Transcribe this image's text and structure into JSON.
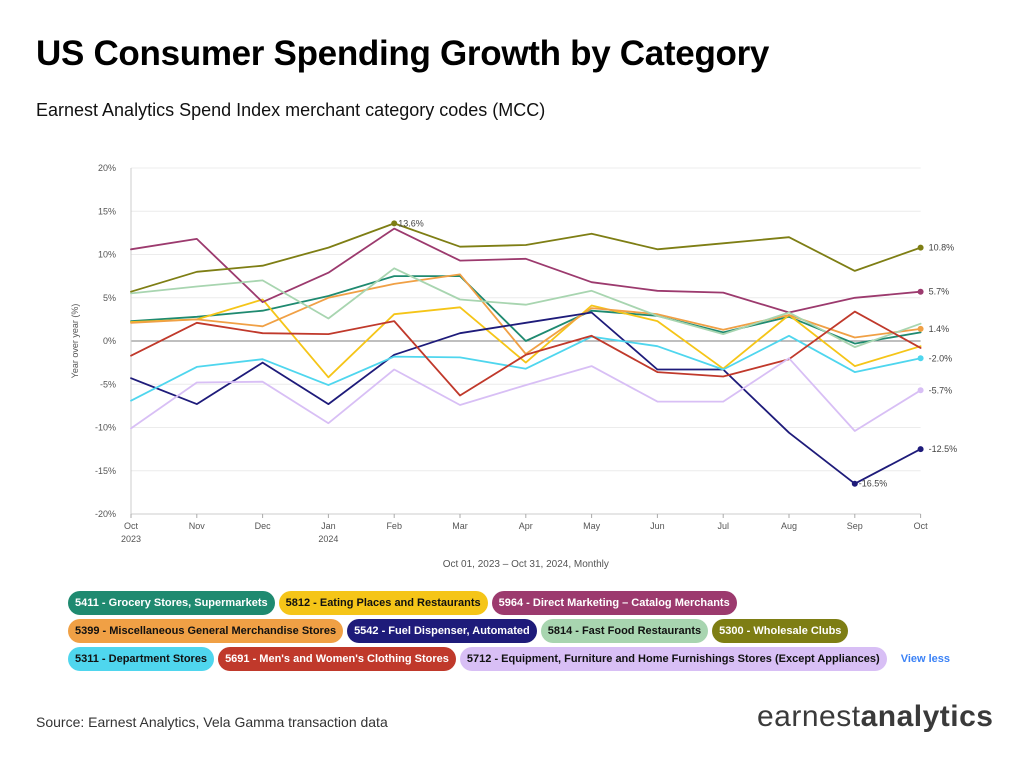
{
  "title": "US Consumer Spending Growth by Category",
  "subtitle": "Earnest Analytics Spend Index merchant category codes (MCC)",
  "date_range": "Oct 01, 2023 – Oct 31, 2024, Monthly",
  "view_less": "View less",
  "source": "Source: Earnest Analytics, Vela Gamma transaction data",
  "logo": {
    "part1": "earnest",
    "part2": "analytics"
  },
  "chart_data": {
    "type": "line",
    "ylabel": "Year over year (%)",
    "xlabel": "",
    "ylim": [
      -20,
      20
    ],
    "yticks": [
      20,
      15,
      10,
      5,
      0,
      -5,
      -10,
      -15,
      -20
    ],
    "ytick_labels": [
      "20%",
      "15%",
      "10%",
      "5%",
      "0%",
      "-5%",
      "-10%",
      "-15%",
      "-20%"
    ],
    "categories": [
      "Oct",
      "Nov",
      "Dec",
      "Jan",
      "Feb",
      "Mar",
      "Apr",
      "May",
      "Jun",
      "Jul",
      "Aug",
      "Sep",
      "Oct"
    ],
    "year_labels": [
      "2023",
      "",
      "",
      "2024",
      "",
      "",
      "",
      "",
      "",
      "",
      "",
      "",
      ""
    ],
    "series": [
      {
        "name": "5411 - Grocery Stores, Supermarkets",
        "color": "#1f8a70",
        "text_color": "#ffffff",
        "values": [
          2.3,
          2.8,
          3.5,
          5.2,
          7.5,
          7.5,
          0,
          3.5,
          2.9,
          1.0,
          2.8,
          -0.3,
          1.0
        ]
      },
      {
        "name": "5812 - Eating Places and Restaurants",
        "color": "#f5c518",
        "text_color": "#111111",
        "values": [
          2.2,
          2.5,
          4.8,
          -4.2,
          3.1,
          3.9,
          -2.5,
          4.1,
          2.3,
          -3.2,
          3.0,
          -2.9,
          -0.6
        ]
      },
      {
        "name": "5964 - Direct Marketing – Catalog Merchants",
        "color": "#9c3a6e",
        "text_color": "#ffffff",
        "values": [
          10.6,
          11.8,
          4.5,
          7.9,
          13.0,
          9.3,
          9.5,
          6.8,
          5.8,
          5.6,
          3.3,
          5.0,
          5.7
        ]
      },
      {
        "name": "5399 - Miscellaneous General Merchandise Stores",
        "color": "#f0a045",
        "text_color": "#111111",
        "values": [
          2.1,
          2.5,
          1.7,
          5.0,
          6.6,
          7.7,
          -1.5,
          3.8,
          3.1,
          1.3,
          3.0,
          0.4,
          1.4
        ]
      },
      {
        "name": "5542 - Fuel Dispenser, Automated",
        "color": "#1e1b7a",
        "text_color": "#ffffff",
        "values": [
          -4.3,
          -7.3,
          -2.5,
          -7.3,
          -1.6,
          0.9,
          2.1,
          3.3,
          -3.3,
          -3.3,
          -10.6,
          -16.5,
          -12.5
        ]
      },
      {
        "name": "5814 - Fast Food Restaurants",
        "color": "#a8d5b0",
        "text_color": "#111111",
        "values": [
          5.5,
          6.3,
          7.0,
          2.6,
          8.4,
          4.8,
          4.2,
          5.8,
          2.9,
          0.8,
          3.3,
          -0.7,
          2.0
        ]
      },
      {
        "name": "5300 - Wholesale Clubs",
        "color": "#7e7e14",
        "text_color": "#ffffff",
        "values": [
          5.7,
          8.0,
          8.7,
          10.8,
          13.6,
          10.9,
          11.1,
          12.4,
          10.6,
          11.3,
          12.0,
          8.1,
          10.8
        ]
      },
      {
        "name": "5311 - Department Stores",
        "color": "#4fd6ee",
        "text_color": "#111111",
        "values": [
          -6.9,
          -3.0,
          -2.1,
          -5.1,
          -1.8,
          -1.9,
          -3.2,
          0.5,
          -0.6,
          -3.3,
          0.6,
          -3.6,
          -2.0
        ]
      },
      {
        "name": "5691 - Men's and Women's Clothing Stores",
        "color": "#c0392b",
        "text_color": "#ffffff",
        "values": [
          -1.7,
          2.1,
          0.9,
          0.8,
          2.3,
          -6.3,
          -1.6,
          0.6,
          -3.6,
          -4.1,
          -2.1,
          3.4,
          -0.8
        ]
      },
      {
        "name": "5712 - Equipment, Furniture and Home Furnishings Stores (Except Appliances)",
        "color": "#d8bff5",
        "text_color": "#111111",
        "values": [
          -10.1,
          -4.8,
          -4.7,
          -9.5,
          -3.3,
          -7.4,
          -5.1,
          -2.9,
          -7.0,
          -7.0,
          -2.0,
          -10.4,
          -5.7
        ]
      }
    ],
    "legend_rows": [
      [
        0,
        1,
        2
      ],
      [
        3,
        4,
        5,
        6
      ],
      [
        7,
        8,
        9
      ]
    ],
    "annotations": [
      {
        "series": 6,
        "index": 4,
        "text": "13.6%"
      },
      {
        "series": 4,
        "index": 11,
        "text": "-16.5%"
      }
    ],
    "end_labels": [
      {
        "series": 6,
        "text": "10.8%"
      },
      {
        "series": 2,
        "text": "5.7%"
      },
      {
        "series": 3,
        "text": "1.4%"
      },
      {
        "series": 7,
        "text": "-2.0%"
      },
      {
        "series": 9,
        "text": "-5.7%"
      },
      {
        "series": 4,
        "text": "-12.5%"
      }
    ]
  }
}
